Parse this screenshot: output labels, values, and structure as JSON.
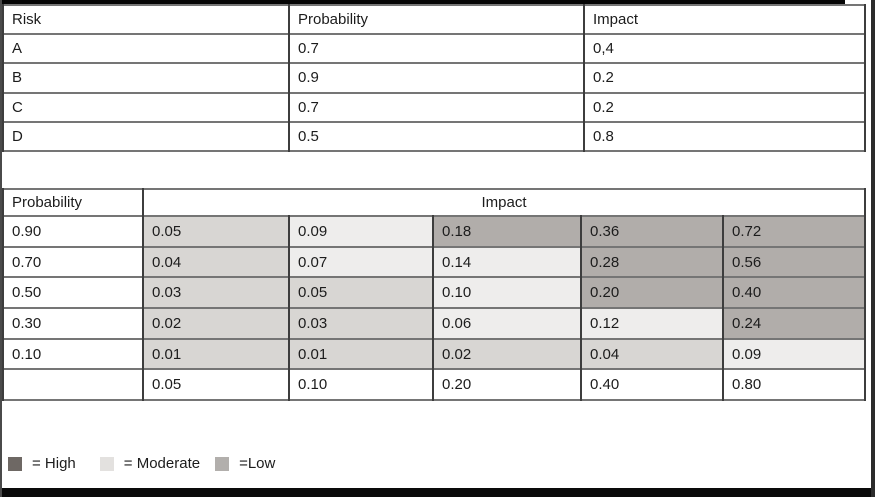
{
  "risk_table": {
    "columns": [
      "Risk",
      "Probability",
      "Impact"
    ],
    "rows": [
      [
        "A",
        "0.7",
        "0,4"
      ],
      [
        "B",
        "0.9",
        "0.2"
      ],
      [
        "C",
        "0.7",
        "0.2"
      ],
      [
        "D",
        "0.5",
        "0.8"
      ]
    ]
  },
  "matrix_table": {
    "row_header": "Probability",
    "col_header": "Impact",
    "rows": [
      {
        "probability": "0.90",
        "cells": [
          [
            "0.05",
            "low"
          ],
          [
            "0.09",
            "moderate"
          ],
          [
            "0.18",
            "high"
          ],
          [
            "0.36",
            "high"
          ],
          [
            "0.72",
            "high"
          ]
        ]
      },
      {
        "probability": "0.70",
        "cells": [
          [
            "0.04",
            "low"
          ],
          [
            "0.07",
            "moderate"
          ],
          [
            "0.14",
            "moderate"
          ],
          [
            "0.28",
            "high"
          ],
          [
            "0.56",
            "high"
          ]
        ]
      },
      {
        "probability": "0.50",
        "cells": [
          [
            "0.03",
            "low"
          ],
          [
            "0.05",
            "low"
          ],
          [
            "0.10",
            "moderate"
          ],
          [
            "0.20",
            "high"
          ],
          [
            "0.40",
            "high"
          ]
        ]
      },
      {
        "probability": "0.30",
        "cells": [
          [
            "0.02",
            "low"
          ],
          [
            "0.03",
            "low"
          ],
          [
            "0.06",
            "moderate"
          ],
          [
            "0.12",
            "moderate"
          ],
          [
            "0.24",
            "high"
          ]
        ]
      },
      {
        "probability": "0.10",
        "cells": [
          [
            "0.01",
            "low"
          ],
          [
            "0.01",
            "low"
          ],
          [
            "0.02",
            "low"
          ],
          [
            "0.04",
            "low"
          ],
          [
            "0.09",
            "moderate"
          ]
        ]
      },
      {
        "probability": "",
        "cells": [
          [
            "0.05",
            "none"
          ],
          [
            "0.10",
            "none"
          ],
          [
            "0.20",
            "none"
          ],
          [
            "0.40",
            "none"
          ],
          [
            "0.80",
            "none"
          ]
        ]
      }
    ]
  },
  "legend": {
    "items": [
      {
        "label": "= High",
        "level": "high"
      },
      {
        "label": "= Moderate",
        "level": "moderate"
      },
      {
        "label": "=Low",
        "level": "low"
      }
    ]
  },
  "colors": {
    "cell_high": "#b1adaa",
    "cell_moderate": "#eeedec",
    "cell_low": "#d8d6d3",
    "cell_none": "#ffffff",
    "swatch_high": "#6e6864",
    "swatch_moderate": "#e3e1df",
    "swatch_low": "#b2afac"
  }
}
